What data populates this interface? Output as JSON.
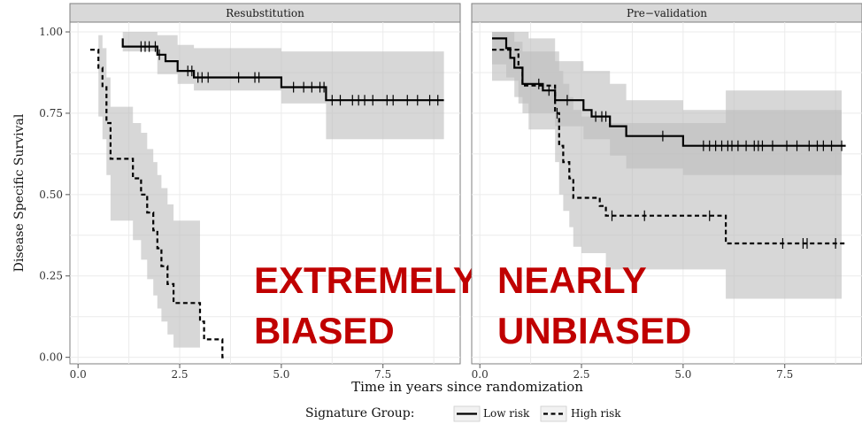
{
  "chart_data": {
    "type": "line",
    "x_label": "Time in years since randomization",
    "y_label": "Disease Specific Survival",
    "x_ticks": [
      "0.0",
      "2.5",
      "5.0",
      "7.5"
    ],
    "y_ticks": [
      "0.00",
      "0.25",
      "0.50",
      "0.75",
      "1.00"
    ],
    "xlim": [
      -0.2,
      9.4
    ],
    "ylim": [
      -0.02,
      1.03
    ],
    "grid": true,
    "legend": {
      "title": "Signature Group:",
      "position": "bottom",
      "entries": [
        {
          "label": "Low risk",
          "style": "solid"
        },
        {
          "label": "High risk",
          "style": "dashed"
        }
      ]
    },
    "panels": [
      {
        "title": "Resubstitution",
        "annotation": [
          "EXTREMELY",
          "BIASED"
        ],
        "series": [
          {
            "name": "Low risk",
            "style": "solid",
            "x": [
              1.1,
              1.1,
              1.95,
              2.15,
              2.45,
              2.85,
              5.0,
              6.1,
              9.0
            ],
            "y": [
              0.98,
              0.955,
              0.93,
              0.91,
              0.88,
              0.86,
              0.83,
              0.79,
              0.79
            ],
            "censor_x": [
              1.55,
              1.65,
              1.75,
              1.9,
              2.0,
              2.7,
              2.8,
              2.95,
              3.05,
              3.2,
              3.95,
              4.35,
              4.45,
              5.3,
              5.55,
              5.75,
              5.95,
              6.05,
              6.25,
              6.45,
              6.75,
              6.9,
              7.05,
              7.25,
              7.6,
              7.75,
              8.1,
              8.35,
              8.65,
              8.85
            ],
            "band_x": [
              1.1,
              1.95,
              2.45,
              2.85,
              5.0,
              6.1,
              9.0
            ],
            "band_lower": [
              0.94,
              0.87,
              0.84,
              0.82,
              0.78,
              0.67,
              0.67
            ],
            "band_upper": [
              1.0,
              0.99,
              0.96,
              0.95,
              0.94,
              0.94,
              0.94
            ]
          },
          {
            "name": "High risk",
            "style": "dashed",
            "x": [
              0.3,
              0.5,
              0.6,
              0.7,
              0.8,
              1.05,
              1.35,
              1.55,
              1.7,
              1.85,
              1.95,
              2.05,
              2.2,
              2.35,
              3.0,
              3.1,
              3.2,
              3.55,
              3.6
            ],
            "y": [
              0.945,
              0.89,
              0.83,
              0.72,
              0.61,
              0.61,
              0.55,
              0.5,
              0.445,
              0.39,
              0.335,
              0.28,
              0.225,
              0.167,
              0.11,
              0.055,
              0.055,
              0.0,
              0.0
            ],
            "censor_x": [],
            "band_x": [
              0.5,
              0.6,
              0.7,
              0.8,
              1.05,
              1.35,
              1.55,
              1.7,
              1.85,
              1.95,
              2.05,
              2.2,
              2.35,
              3.0
            ],
            "band_lower": [
              0.99,
              0.95,
              0.86,
              0.77,
              0.77,
              0.72,
              0.69,
              0.64,
              0.6,
              0.56,
              0.52,
              0.47,
              0.42,
              0.37
            ],
            "band_upper": [
              0.74,
              0.67,
              0.56,
              0.42,
              0.42,
              0.36,
              0.3,
              0.24,
              0.19,
              0.15,
              0.11,
              0.07,
              0.03,
              0.0
            ]
          }
        ]
      },
      {
        "title": "Pre−validation",
        "annotation": [
          "NEARLY",
          "UNBIASED"
        ],
        "series": [
          {
            "name": "Low risk",
            "style": "solid",
            "x": [
              0.3,
              0.65,
              0.75,
              0.85,
              1.05,
              1.55,
              1.85,
              2.1,
              2.55,
              2.75,
              3.2,
              3.6,
              5.0,
              9.0
            ],
            "y": [
              0.98,
              0.95,
              0.92,
              0.89,
              0.84,
              0.82,
              0.79,
              0.79,
              0.76,
              0.74,
              0.71,
              0.68,
              0.65,
              0.65
            ],
            "censor_x": [
              1.45,
              1.7,
              2.15,
              2.85,
              3.0,
              3.1,
              4.5,
              5.5,
              5.65,
              5.8,
              5.95,
              6.1,
              6.2,
              6.35,
              6.55,
              6.75,
              6.85,
              6.95,
              7.2,
              7.55,
              7.8,
              8.1,
              8.3,
              8.45,
              8.65,
              8.9
            ],
            "band_x": [
              0.3,
              0.65,
              0.85,
              1.05,
              1.85,
              2.55,
              3.2,
              3.6,
              5.0,
              8.9
            ],
            "band_lower": [
              0.9,
              0.86,
              0.8,
              0.75,
              0.71,
              0.67,
              0.62,
              0.58,
              0.56,
              0.56
            ],
            "band_upper": [
              1.0,
              1.0,
              0.97,
              0.94,
              0.91,
              0.88,
              0.84,
              0.79,
              0.76,
              0.76
            ]
          },
          {
            "name": "High risk",
            "style": "dashed",
            "x": [
              0.3,
              0.95,
              1.05,
              1.2,
              1.85,
              1.95,
              2.05,
              2.2,
              2.3,
              2.5,
              2.95,
              3.1,
              6.05,
              9.0
            ],
            "y": [
              0.945,
              0.89,
              0.835,
              0.835,
              0.75,
              0.65,
              0.6,
              0.55,
              0.49,
              0.49,
              0.465,
              0.435,
              0.35,
              0.35
            ],
            "censor_x": [
              1.9,
              3.25,
              4.05,
              5.65,
              7.45,
              7.95,
              8.05,
              8.75
            ],
            "band_x": [
              0.3,
              0.95,
              1.2,
              1.85,
              1.95,
              2.05,
              2.2,
              2.3,
              2.5,
              3.1,
              6.05,
              8.9
            ],
            "band_lower": [
              0.85,
              0.78,
              0.7,
              0.6,
              0.5,
              0.45,
              0.4,
              0.34,
              0.32,
              0.27,
              0.18,
              0.18
            ],
            "band_upper": [
              1.0,
              1.0,
              0.98,
              0.94,
              0.88,
              0.84,
              0.8,
              0.76,
              0.74,
              0.72,
              0.82,
              0.82
            ]
          }
        ]
      }
    ]
  }
}
